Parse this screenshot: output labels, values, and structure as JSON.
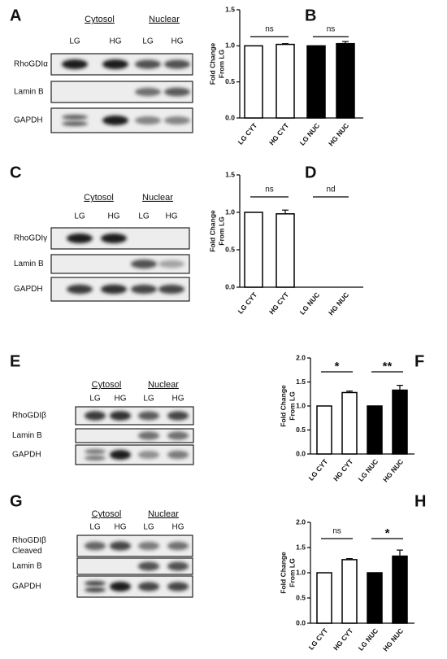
{
  "blots": [
    {
      "letter": "A",
      "groups": [
        "Cytosol",
        "Nuclear"
      ],
      "lanes": [
        "LG",
        "HG",
        "LG",
        "HG"
      ],
      "rows": [
        {
          "label": "RhoGDIα"
        },
        {
          "label": "Lamin B"
        },
        {
          "label": "GAPDH"
        }
      ]
    },
    {
      "letter": "C",
      "groups": [
        "Cytosol",
        "Nuclear"
      ],
      "lanes": [
        "LG",
        "HG",
        "LG",
        "HG"
      ],
      "rows": [
        {
          "label": "RhoGDIγ"
        },
        {
          "label": "Lamin B"
        },
        {
          "label": "GAPDH"
        }
      ]
    },
    {
      "letter": "E",
      "groups": [
        "Cytosol",
        "Nuclear"
      ],
      "lanes": [
        "LG",
        "HG",
        "LG",
        "HG"
      ],
      "rows": [
        {
          "label": "RhoGDIβ"
        },
        {
          "label": "Lamin B"
        },
        {
          "label": "GAPDH"
        }
      ]
    },
    {
      "letter": "G",
      "groups": [
        "Cytosol",
        "Nuclear"
      ],
      "lanes": [
        "LG",
        "HG",
        "LG",
        "HG"
      ],
      "rows": [
        {
          "label": [
            "RhoGDIβ",
            "Cleaved"
          ]
        },
        {
          "label": "Lamin B"
        },
        {
          "label": "GAPDH"
        }
      ]
    }
  ],
  "chart_data": [
    {
      "type": "bar",
      "letter": "B",
      "ylabel": [
        "Fold Change",
        "From LG"
      ],
      "categories": [
        "LG CYT",
        "HG CYT",
        "LG NUC",
        "HG NUC"
      ],
      "values": [
        1.0,
        1.02,
        1.0,
        1.03
      ],
      "errors": [
        0,
        0.01,
        0,
        0.03
      ],
      "colors": [
        "#ffffff",
        "#ffffff",
        "#000000",
        "#000000"
      ],
      "ylim": [
        0,
        1.5
      ],
      "yticks": [
        {
          "value": 0,
          "label": "0.0"
        },
        {
          "value": 0.5,
          "label": "0.5"
        },
        {
          "value": 1,
          "label": "1.0"
        },
        {
          "value": 1.5,
          "label": "1.5"
        }
      ],
      "annotations": [
        "ns",
        "ns"
      ]
    },
    {
      "type": "bar",
      "letter": "D",
      "ylabel": [
        "Fold Change",
        "From LG"
      ],
      "categories": [
        "LG CYT",
        "HG CYT",
        "LG NUC",
        "HG NUC"
      ],
      "values": [
        1.0,
        0.98,
        null,
        null
      ],
      "errors": [
        0,
        0.05,
        null,
        null
      ],
      "colors": [
        "#ffffff",
        "#ffffff",
        "#000000",
        "#000000"
      ],
      "ylim": [
        0,
        1.5
      ],
      "yticks": [
        {
          "value": 0,
          "label": "0.0"
        },
        {
          "value": 0.5,
          "label": "0.5"
        },
        {
          "value": 1,
          "label": "1.0"
        },
        {
          "value": 1.5,
          "label": "1.5"
        }
      ],
      "annotations": [
        "ns",
        "nd"
      ]
    },
    {
      "type": "bar",
      "letter": "F",
      "ylabel": [
        "Fold Change",
        "From LG"
      ],
      "categories": [
        "LG CYT",
        "HG CYT",
        "LG NUC",
        "HG NUC"
      ],
      "values": [
        1.0,
        1.28,
        1.0,
        1.33
      ],
      "errors": [
        0,
        0.03,
        0,
        0.1
      ],
      "colors": [
        "#ffffff",
        "#ffffff",
        "#000000",
        "#000000"
      ],
      "ylim": [
        0,
        2
      ],
      "yticks": [
        {
          "value": 0,
          "label": "0.0"
        },
        {
          "value": 0.5,
          "label": "0.5"
        },
        {
          "value": 1,
          "label": "1.0"
        },
        {
          "value": 1.5,
          "label": "1.5"
        },
        {
          "value": 2,
          "label": "2.0"
        }
      ],
      "annotations": [
        "*",
        "**"
      ]
    },
    {
      "type": "bar",
      "letter": "H",
      "ylabel": [
        "Fold Change",
        "From LG"
      ],
      "categories": [
        "LG CYT",
        "HG CYT",
        "LG NUC",
        "HG NUC"
      ],
      "values": [
        1.0,
        1.26,
        1.0,
        1.33
      ],
      "errors": [
        0,
        0.02,
        0,
        0.12
      ],
      "colors": [
        "#ffffff",
        "#ffffff",
        "#000000",
        "#000000"
      ],
      "ylim": [
        0,
        2
      ],
      "yticks": [
        {
          "value": 0,
          "label": "0.0"
        },
        {
          "value": 0.5,
          "label": "0.5"
        },
        {
          "value": 1,
          "label": "1.0"
        },
        {
          "value": 1.5,
          "label": "1.5"
        },
        {
          "value": 2,
          "label": "2.0"
        }
      ],
      "annotations": [
        "ns",
        "*"
      ]
    }
  ]
}
